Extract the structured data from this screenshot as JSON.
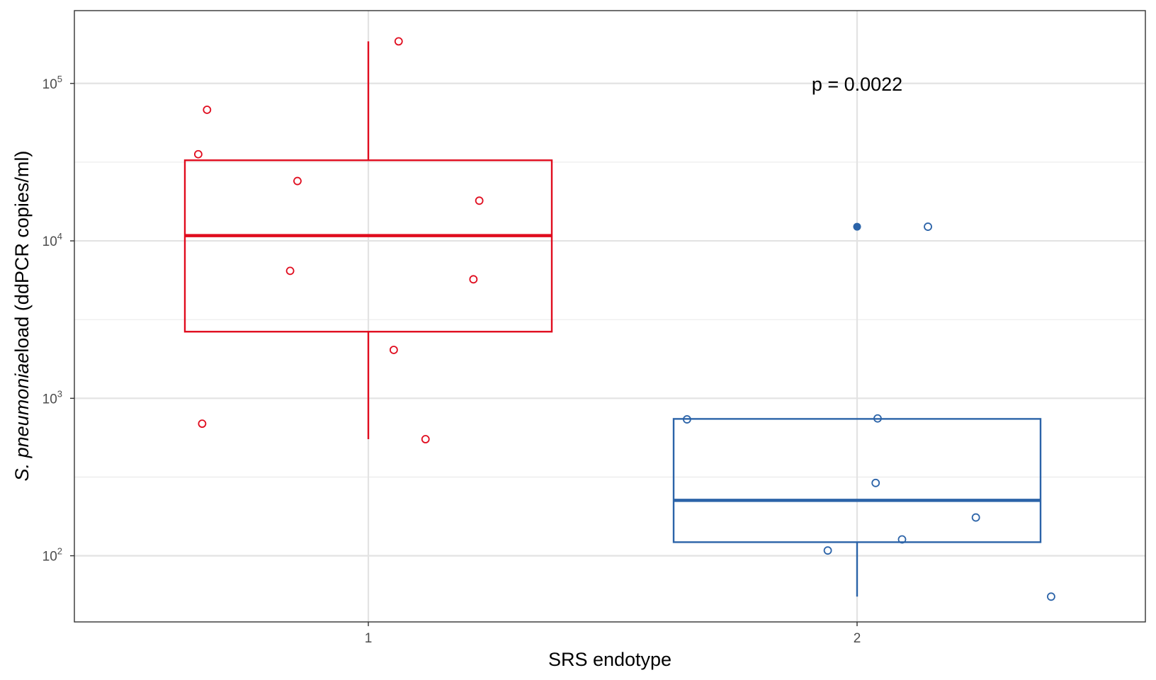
{
  "chart_data": {
    "type": "boxplot",
    "xlabel": "SRS endotype",
    "ylabel_italic": "S. pneumoniae",
    "ylabel_rest": "load (ddPCR copies/ml)",
    "y_scale": "log10",
    "ylim": [
      38,
      290000
    ],
    "y_ticks": [
      {
        "value": 100,
        "base": "10",
        "exp": "2"
      },
      {
        "value": 1000,
        "base": "10",
        "exp": "3"
      },
      {
        "value": 10000,
        "base": "10",
        "exp": "4"
      },
      {
        "value": 100000,
        "base": "10",
        "exp": "5"
      }
    ],
    "y_minor_ticks": [
      316.2,
      3162,
      31623
    ],
    "categories": [
      "1",
      "2"
    ],
    "grid": true,
    "legend": "none",
    "annotation": {
      "text": "p = 0.0022",
      "category": "2",
      "y": 100000
    },
    "groups": [
      {
        "category": "1",
        "color": "#e00c1e",
        "box": {
          "lower_whisker": 550,
          "q1": 2650,
          "median": 10800,
          "q3": 32500,
          "upper_whisker": 185000
        },
        "outliers": [],
        "points": [
          {
            "x": 0.67,
            "y": 68000
          },
          {
            "x": 0.652,
            "y": 35500
          },
          {
            "x": 0.855,
            "y": 24000
          },
          {
            "x": 1.227,
            "y": 18000
          },
          {
            "x": 0.84,
            "y": 6450
          },
          {
            "x": 1.215,
            "y": 5700
          },
          {
            "x": 1.062,
            "y": 185000
          },
          {
            "x": 1.052,
            "y": 2030
          },
          {
            "x": 0.66,
            "y": 690
          },
          {
            "x": 1.117,
            "y": 550
          }
        ]
      },
      {
        "category": "2",
        "color": "#2b63a8",
        "box": {
          "lower_whisker": 55,
          "q1": 122,
          "median": 225,
          "q3": 740,
          "upper_whisker": 740
        },
        "outliers": [
          12300
        ],
        "points": [
          {
            "x": 2.145,
            "y": 12300
          },
          {
            "x": 1.652,
            "y": 735
          },
          {
            "x": 2.042,
            "y": 745
          },
          {
            "x": 2.038,
            "y": 290
          },
          {
            "x": 2.243,
            "y": 175
          },
          {
            "x": 2.092,
            "y": 127
          },
          {
            "x": 1.94,
            "y": 108
          },
          {
            "x": 2.397,
            "y": 55
          }
        ]
      }
    ]
  }
}
